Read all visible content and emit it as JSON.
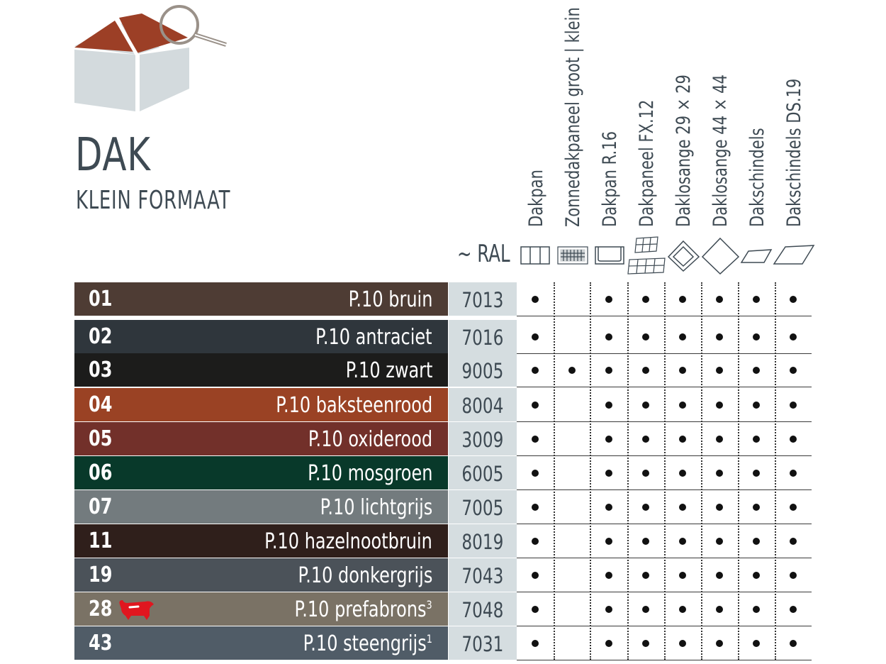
{
  "header": {
    "title": "DAK",
    "subtitle": "KLEIN FORMAAT",
    "ral_label": "~ RAL"
  },
  "columns": [
    "Dakpan",
    "Zonnedakpaneel groot | klein",
    "Dakpan R.16",
    "Dakpaneel FX.12",
    "Daklosange 29 × 29",
    "Daklosange 44 × 44",
    "Dakschindels",
    "Dakschindels DS.19"
  ],
  "rows": [
    {
      "code": "01",
      "name": "P.10 bruin",
      "sup": "",
      "ral": "7013",
      "color": "#4e3c34",
      "avail": [
        1,
        0,
        1,
        1,
        1,
        1,
        1,
        1
      ]
    },
    {
      "code": "02",
      "name": "P.10 antraciet",
      "sup": "",
      "ral": "7016",
      "color": "#2f363c",
      "avail": [
        1,
        0,
        1,
        1,
        1,
        1,
        1,
        1
      ]
    },
    {
      "code": "03",
      "name": "P.10 zwart",
      "sup": "",
      "ral": "9005",
      "color": "#1c1c1b",
      "avail": [
        1,
        1,
        1,
        1,
        1,
        1,
        1,
        1
      ]
    },
    {
      "code": "04",
      "name": "P.10 baksteenrood",
      "sup": "",
      "ral": "8004",
      "color": "#9a4224",
      "avail": [
        1,
        0,
        1,
        1,
        1,
        1,
        1,
        1
      ]
    },
    {
      "code": "05",
      "name": "P.10 oxiderood",
      "sup": "",
      "ral": "3009",
      "color": "#72302a",
      "avail": [
        1,
        0,
        1,
        1,
        1,
        1,
        1,
        1
      ]
    },
    {
      "code": "06",
      "name": "P.10 mosgroen",
      "sup": "",
      "ral": "6005",
      "color": "#08392a",
      "avail": [
        1,
        0,
        1,
        1,
        1,
        1,
        1,
        1
      ]
    },
    {
      "code": "07",
      "name": "P.10 lichtgrijs",
      "sup": "",
      "ral": "7005",
      "color": "#737b7e",
      "avail": [
        1,
        0,
        1,
        1,
        1,
        1,
        1,
        1
      ]
    },
    {
      "code": "11",
      "name": "P.10 hazelnootbruin",
      "sup": "",
      "ral": "8019",
      "color": "#2f1f1b",
      "avail": [
        1,
        0,
        1,
        1,
        1,
        1,
        1,
        1
      ]
    },
    {
      "code": "19",
      "name": "P.10 donkergrijs",
      "sup": "",
      "ral": "7043",
      "color": "#4b5259",
      "avail": [
        1,
        0,
        1,
        1,
        1,
        1,
        1,
        1
      ]
    },
    {
      "code": "28",
      "name": "P.10 prefabrons",
      "sup": "3",
      "ral": "7048",
      "color": "#7a7265",
      "avail": [
        1,
        0,
        1,
        1,
        1,
        1,
        1,
        1
      ]
    },
    {
      "code": "43",
      "name": "P.10 steengrijs",
      "sup": "1",
      "ral": "7031",
      "color": "#505c67",
      "avail": [
        1,
        0,
        1,
        1,
        1,
        1,
        1,
        1
      ]
    }
  ],
  "icons": {
    "logo": "house-magnifier-icon",
    "bull": "red-bull-icon",
    "profiles": [
      "dakpan-profile-icon",
      "zonnedakpaneel-profile-icon",
      "dakpan-r16-profile-icon",
      "dakpaneel-fx12-profile-icon",
      "daklosange-29-profile-icon",
      "daklosange-44-profile-icon",
      "dakschindels-profile-icon",
      "dakschindels-ds19-profile-icon"
    ]
  },
  "colors": {
    "text": "#3e4a53",
    "ral_bg": "#d5dde0",
    "roof": "#9c3f26",
    "wall": "#d3dadd",
    "bull": "#e0161f"
  }
}
